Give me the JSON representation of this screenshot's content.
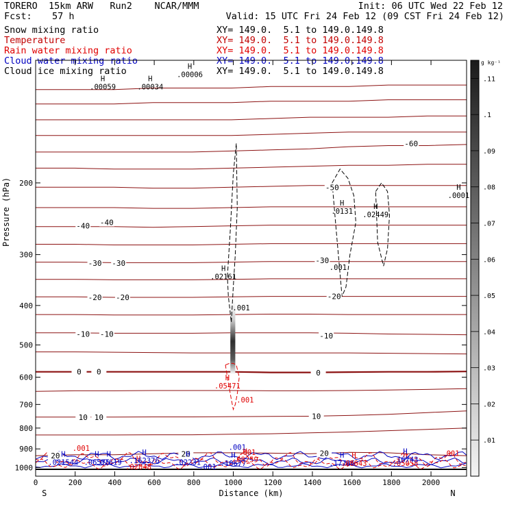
{
  "header": {
    "title_left": "TORERO  15km ARW   Run2    NCAR/MMM",
    "init": "Init: 06 UTC Wed 22 Feb 12",
    "fcst_label": "Fcst:",
    "fcst_value": "57 h",
    "valid": "Valid: 15 UTC Fri 24 Feb 12 (09 CST Fri 24 Feb 12)"
  },
  "legend": [
    {
      "name": "Snow mixing ratio",
      "xy": "XY= 149.0.  5.1 to 149.0.149.8",
      "color": "#000000"
    },
    {
      "name": "Temperature",
      "xy": "XY= 149.0.  5.1 to 149.0.149.8",
      "color": "#c00000"
    },
    {
      "name": "Rain water mixing ratio",
      "xy": "XY= 149.0.  5.1 to 149.0.149.8",
      "color": "#e00000"
    },
    {
      "name": "Cloud water mixing ratio",
      "xy": "XY= 149.0.  5.1 to 149.0.149.8",
      "color": "#0000c0"
    },
    {
      "name": "Cloud ice mixing ratio",
      "xy": "XY= 149.0.  5.1 to 149.0.149.8",
      "color": "#000000"
    }
  ],
  "chart_data": {
    "type": "cross-section",
    "xlabel": "Distance (km)",
    "ylabel": "Pressure (hPa)",
    "x_ticks": [
      0,
      200,
      400,
      600,
      800,
      1000,
      1200,
      1400,
      1600,
      1800,
      2000
    ],
    "xlim": [
      0,
      2180
    ],
    "y_ticks": [
      200,
      300,
      400,
      500,
      600,
      700,
      800,
      900,
      1000
    ],
    "ylim": [
      100,
      1050
    ],
    "y_scale": "log",
    "end_labels": {
      "left": "S",
      "right": "N"
    },
    "colorbar": {
      "unit": "g kg⁻¹",
      "ticks": [
        ".01",
        ".02",
        ".03",
        ".04",
        ".05",
        ".06",
        ".07",
        ".08",
        ".09",
        ".1",
        ".11"
      ],
      "values": [
        0.01,
        0.02,
        0.03,
        0.04,
        0.05,
        0.06,
        0.07,
        0.08,
        0.09,
        0.1,
        0.11
      ]
    },
    "temperature_labels": [
      {
        "text": "-60",
        "x": 1900,
        "p": 160
      },
      {
        "text": "-50",
        "x": 1500,
        "p": 205
      },
      {
        "text": "-40",
        "x": 240,
        "p": 255
      },
      {
        "text": "-40",
        "x": 360,
        "p": 250
      },
      {
        "text": "-30",
        "x": 300,
        "p": 315
      },
      {
        "text": "-30",
        "x": 420,
        "p": 315
      },
      {
        "text": "-30",
        "x": 1450,
        "p": 310
      },
      {
        "text": "-20",
        "x": 300,
        "p": 382
      },
      {
        "text": "-20",
        "x": 440,
        "p": 382
      },
      {
        "text": "-20",
        "x": 1510,
        "p": 380
      },
      {
        "text": "-10",
        "x": 240,
        "p": 470
      },
      {
        "text": "-10",
        "x": 360,
        "p": 470
      },
      {
        "text": "-10",
        "x": 1470,
        "p": 475
      },
      {
        "text": "0",
        "x": 220,
        "p": 582
      },
      {
        "text": "0",
        "x": 320,
        "p": 582
      },
      {
        "text": "0",
        "x": 1430,
        "p": 585
      },
      {
        "text": "10",
        "x": 240,
        "p": 752
      },
      {
        "text": "10",
        "x": 320,
        "p": 752
      },
      {
        "text": "10",
        "x": 1420,
        "p": 748
      },
      {
        "text": "20",
        "x": 100,
        "p": 935
      },
      {
        "text": "20",
        "x": 760,
        "p": 925
      },
      {
        "text": "20",
        "x": 1460,
        "p": 922
      }
    ],
    "maxima": [
      {
        "text": ".00059",
        "x": 340,
        "p": 118,
        "color": "#000000"
      },
      {
        "text": ".00034",
        "x": 580,
        "p": 118,
        "color": "#000000"
      },
      {
        "text": ".00006",
        "x": 780,
        "p": 110,
        "color": "#000000"
      },
      {
        "text": ".0131",
        "x": 1550,
        "p": 238,
        "color": "#000000"
      },
      {
        "text": ".02449",
        "x": 1720,
        "p": 243,
        "color": "#000000"
      },
      {
        "text": ".0001",
        "x": 2140,
        "p": 218,
        "color": "#000000"
      },
      {
        "text": ".02161",
        "x": 950,
        "p": 345,
        "color": "#000000"
      },
      {
        "text": ".05471",
        "x": 970,
        "p": 640,
        "color": "#e00000"
      },
      {
        "text": ".02048",
        "x": 520,
        "p": 1010,
        "color": "#e00000"
      },
      {
        "text": ".08259",
        "x": 1060,
        "p": 970,
        "color": "#e00000"
      },
      {
        "text": ".02231",
        "x": 770,
        "p": 985,
        "color": "#0000c0"
      },
      {
        "text": ".021544",
        "x": 140,
        "p": 985,
        "color": "#0000c0"
      },
      {
        "text": ".06575",
        "x": 310,
        "p": 985,
        "color": "#0000c0"
      },
      {
        "text": ".07619",
        "x": 370,
        "p": 985,
        "color": "#0000c0"
      },
      {
        "text": ".162376",
        "x": 550,
        "p": 975,
        "color": "#0000c0"
      },
      {
        "text": ".10677",
        "x": 1000,
        "p": 990,
        "color": "#0000c0"
      },
      {
        "text": ".17786",
        "x": 1550,
        "p": 990,
        "color": "#0000c0"
      },
      {
        "text": ".08643",
        "x": 1610,
        "p": 990,
        "color": "#e00000"
      },
      {
        "text": ".05058",
        "x": 1870,
        "p": 990,
        "color": "#e00000"
      },
      {
        "text": ".16743",
        "x": 1870,
        "p": 970,
        "color": "#0000c0"
      }
    ],
    "contour_labels": [
      {
        "text": ".001",
        "x": 1040,
        "p": 405,
        "color": "#000000"
      },
      {
        "text": ".001",
        "x": 1530,
        "p": 322,
        "color": "#000000"
      },
      {
        "text": ".001",
        "x": 1060,
        "p": 682,
        "color": "#e00000"
      },
      {
        "text": ".001",
        "x": 230,
        "p": 895,
        "color": "#e00000"
      },
      {
        "text": ".001",
        "x": 1070,
        "p": 917,
        "color": "#e00000"
      },
      {
        "text": ".001",
        "x": 2100,
        "p": 922,
        "color": "#e00000"
      },
      {
        "text": ".001",
        "x": 1020,
        "p": 890,
        "color": "#0000c0"
      },
      {
        "text": ".001",
        "x": 870,
        "p": 995,
        "color": "#0000c0"
      }
    ],
    "temperature_isotherms": [
      {
        "t": -70,
        "p": [
          118,
          118,
          118,
          117,
          117,
          117,
          116,
          116,
          116,
          115,
          115,
          115
        ]
      },
      {
        "t": -68,
        "p": [
          128,
          128,
          128,
          127,
          127,
          127,
          126,
          126,
          126,
          125,
          125,
          125
        ]
      },
      {
        "t": -66,
        "p": [
          140,
          140,
          140,
          140,
          140,
          140,
          139,
          138,
          138,
          138,
          137,
          137
        ]
      },
      {
        "t": -64,
        "p": [
          153,
          153,
          153,
          153,
          153,
          153,
          152,
          151,
          150,
          150,
          150,
          150
        ]
      },
      {
        "t": -60,
        "p": [
          168,
          168,
          168,
          168,
          168,
          167,
          166,
          165,
          163,
          162,
          162,
          161
        ]
      },
      {
        "t": -56,
        "p": [
          184,
          184,
          185,
          185,
          185,
          184,
          183,
          182,
          181,
          181,
          180,
          180
        ]
      },
      {
        "t": -50,
        "p": [
          205,
          205,
          205,
          206,
          206,
          205,
          204,
          203,
          203,
          203,
          203,
          203
        ]
      },
      {
        "t": -45,
        "p": [
          230,
          230,
          230,
          231,
          231,
          230,
          229,
          229,
          229,
          229,
          229,
          229
        ]
      },
      {
        "t": -40,
        "p": [
          256,
          256,
          256,
          257,
          256,
          255,
          254,
          254,
          254,
          254,
          254,
          254
        ]
      },
      {
        "t": -35,
        "p": [
          283,
          283,
          284,
          284,
          284,
          283,
          282,
          282,
          282,
          282,
          282,
          282
        ]
      },
      {
        "t": -30,
        "p": [
          313,
          313,
          314,
          314,
          314,
          313,
          312,
          312,
          312,
          312,
          312,
          312
        ]
      },
      {
        "t": -25,
        "p": [
          345,
          345,
          346,
          346,
          346,
          345,
          344,
          344,
          344,
          344,
          344,
          344
        ]
      },
      {
        "t": -20,
        "p": [
          381,
          381,
          382,
          382,
          382,
          381,
          380,
          380,
          380,
          380,
          380,
          380
        ]
      },
      {
        "t": -15,
        "p": [
          421,
          421,
          422,
          422,
          422,
          421,
          420,
          420,
          421,
          421,
          421,
          421
        ]
      },
      {
        "t": -10,
        "p": [
          467,
          467,
          468,
          468,
          468,
          467,
          467,
          467,
          468,
          470,
          471,
          472
        ]
      },
      {
        "t": -5,
        "p": [
          520,
          520,
          521,
          522,
          523,
          523,
          523,
          523,
          523,
          524,
          525,
          526
        ]
      },
      {
        "t": 0,
        "p": [
          582,
          582,
          582,
          582,
          582,
          582,
          584,
          584,
          583,
          582,
          582,
          581
        ]
      },
      {
        "t": 5,
        "p": [
          650,
          648,
          648,
          647,
          647,
          647,
          648,
          648,
          647,
          645,
          643,
          640
        ]
      },
      {
        "t": 10,
        "p": [
          752,
          752,
          752,
          751,
          751,
          750,
          749,
          748,
          745,
          740,
          733,
          726
        ]
      },
      {
        "t": 15,
        "p": [
          832,
          832,
          832,
          831,
          831,
          828,
          826,
          822,
          818,
          812,
          806,
          800
        ]
      },
      {
        "t": 20,
        "p": [
          935,
          930,
          930,
          925,
          920,
          920,
          922,
          925,
          918,
          920,
          930,
          935
        ]
      }
    ],
    "cloud_ice_contours": [
      {
        "x": [
          970,
          985,
          1000,
          1015,
          1020,
          1010,
          1000,
          990,
          975,
          970
        ],
        "p": [
          340,
          260,
          190,
          160,
          230,
          300,
          360,
          440,
          380,
          340
        ]
      },
      {
        "x": [
          1500,
          1540,
          1580,
          1610,
          1620,
          1590,
          1570,
          1550,
          1520,
          1500
        ],
        "p": [
          200,
          185,
          195,
          215,
          250,
          300,
          360,
          380,
          260,
          200
        ]
      },
      {
        "x": [
          1720,
          1750,
          1780,
          1790,
          1780,
          1760,
          1730,
          1720
        ],
        "p": [
          210,
          200,
          210,
          240,
          290,
          320,
          280,
          210
        ]
      }
    ],
    "rain_water_contours": [
      {
        "x": [
          960,
          980,
          1000,
          1015,
          1030,
          1020,
          1010,
          1000,
          990,
          975,
          960
        ],
        "p": [
          560,
          555,
          555,
          560,
          600,
          660,
          700,
          720,
          680,
          620,
          560
        ]
      }
    ]
  }
}
